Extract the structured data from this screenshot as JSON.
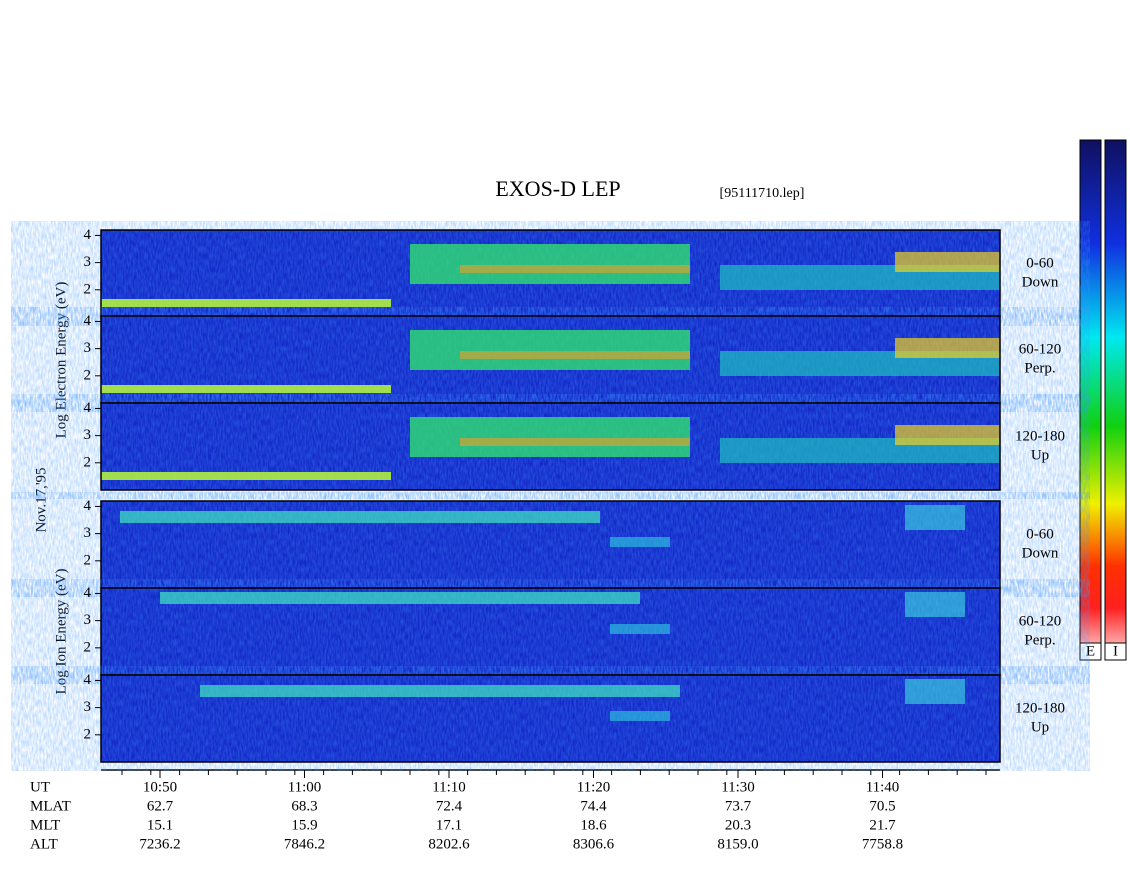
{
  "title": "EXOS-D LEP",
  "file": "[95111710.lep]",
  "date": "Nov.17,'95",
  "ylim": [
    1,
    4.2
  ],
  "yticks": [
    2,
    3,
    4
  ],
  "groups": [
    {
      "label": "Log Electron Energy (eV)",
      "panels": [
        {
          "side": [
            "0-60",
            "Down"
          ]
        },
        {
          "side": [
            "60-120",
            "Perp."
          ]
        },
        {
          "side": [
            "120-180",
            "Up"
          ]
        }
      ]
    },
    {
      "label": "Log Ion Energy (eV)",
      "panels": [
        {
          "side": [
            "0-60",
            "Down"
          ]
        },
        {
          "side": [
            "60-120",
            "Perp."
          ]
        },
        {
          "side": [
            "120-180",
            "Up"
          ]
        }
      ]
    }
  ],
  "table": {
    "row_labels": [
      "UT",
      "MLAT",
      "MLT",
      "ALT"
    ],
    "rows": [
      [
        "10:50",
        "11:00",
        "11:10",
        "11:20",
        "11:30",
        "11:40"
      ],
      [
        "62.7",
        "68.3",
        "72.4",
        "74.4",
        "73.7",
        "70.5"
      ],
      [
        "15.1",
        "15.9",
        "17.1",
        "18.6",
        "20.3",
        "21.7"
      ],
      [
        "7236.2",
        "7846.2",
        "8202.6",
        "8306.6",
        "8159.0",
        "7758.8"
      ]
    ]
  },
  "colorbars": [
    "E",
    "I"
  ]
}
